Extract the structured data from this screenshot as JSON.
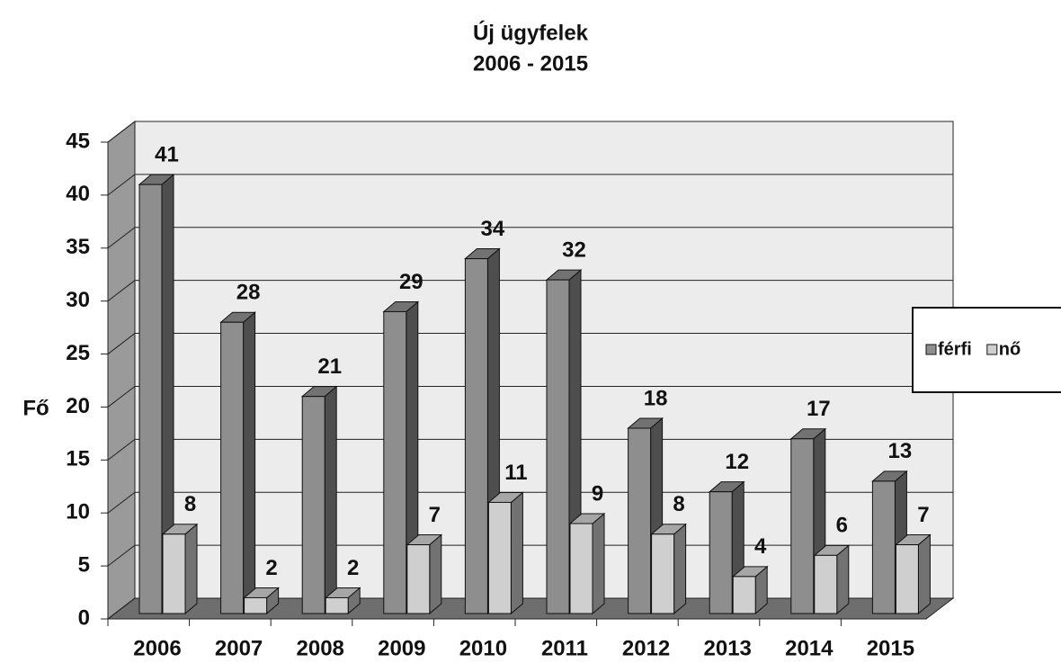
{
  "chart_data": {
    "type": "bar3d",
    "title": "Új ügyfelek",
    "subtitle": "2006 - 2015",
    "y_label": "Fő",
    "categories": [
      "2006",
      "2007",
      "2008",
      "2009",
      "2010",
      "2011",
      "2012",
      "2013",
      "2014",
      "2015"
    ],
    "series": [
      {
        "name": "férfi",
        "color": "#8e8e8e",
        "values": [
          41,
          28,
          21,
          29,
          34,
          32,
          18,
          12,
          17,
          13
        ]
      },
      {
        "name": "nő",
        "color": "#cfcfcf",
        "values": [
          8,
          2,
          2,
          7,
          11,
          9,
          8,
          4,
          6,
          7
        ]
      }
    ],
    "ylim": [
      0,
      45
    ],
    "yticks": [
      0,
      5,
      10,
      15,
      20,
      25,
      30,
      35,
      40,
      45
    ],
    "grid": true,
    "legend": "right"
  }
}
